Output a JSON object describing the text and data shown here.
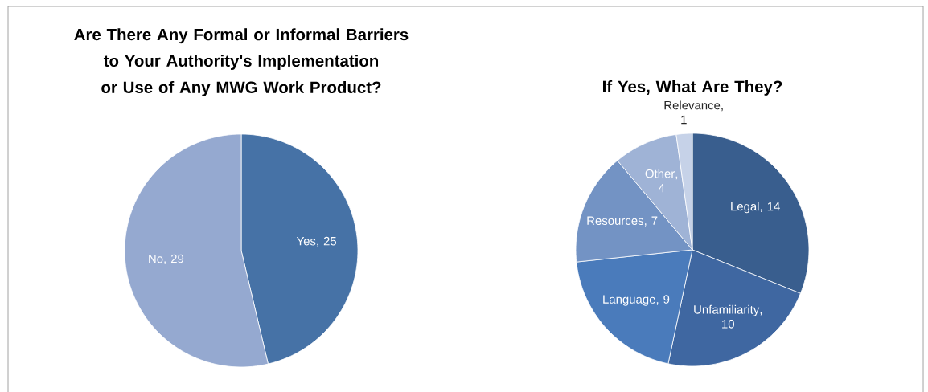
{
  "chart_data": [
    {
      "type": "pie",
      "title": "Are There Any Formal or Informal Barriers to Your Authority's Implementation or Use of Any MWG Work Product?",
      "categories": [
        "Yes",
        "No"
      ],
      "values": [
        25,
        29
      ],
      "colors": [
        "#4672a6",
        "#95a9d0"
      ],
      "data_labels": true,
      "value_labels": [
        ", 25",
        ", 29"
      ]
    },
    {
      "type": "pie",
      "title": "If Yes, What Are They?",
      "categories": [
        "Legal",
        "Unfamiliarity",
        "Language",
        "Resources",
        "Other",
        "Relevance"
      ],
      "values": [
        14,
        10,
        9,
        7,
        4,
        1
      ],
      "colors": [
        "#395e8e",
        "#3f67a1",
        "#4a7bbb",
        "#7393c4",
        "#9fb3d6",
        "#c6d2e8"
      ],
      "data_labels": true,
      "value_labels": [
        ", 14",
        ", 10",
        ", 9",
        ", 7",
        ", 4",
        ", 1"
      ]
    }
  ]
}
